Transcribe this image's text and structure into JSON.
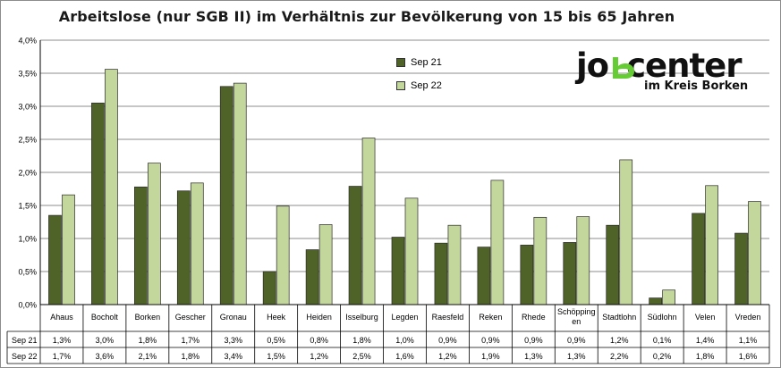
{
  "chart_data": {
    "type": "bar",
    "title": "Arbeitslose (nur SGB II) im Verhältnis zur Bevölkerung von 15 bis 65 Jahren",
    "categories": [
      "Ahaus",
      "Bocholt",
      "Borken",
      "Gescher",
      "Gronau",
      "Heek",
      "Heiden",
      "Isselburg",
      "Legden",
      "Raesfeld",
      "Reken",
      "Rhede",
      "Schöpping\nen",
      "Stadtlohn",
      "Südlohn",
      "Velen",
      "Vreden"
    ],
    "series": [
      {
        "name": "Sep 21",
        "color": "#4f6228",
        "values": [
          1.35,
          3.05,
          1.78,
          1.72,
          3.3,
          0.5,
          0.83,
          1.79,
          1.02,
          0.93,
          0.87,
          0.9,
          0.94,
          1.2,
          0.1,
          1.38,
          1.08
        ],
        "table_values": [
          "1,3%",
          "3,0%",
          "1,8%",
          "1,7%",
          "3,3%",
          "0,5%",
          "0,8%",
          "1,8%",
          "1,0%",
          "0,9%",
          "0,9%",
          "0,9%",
          "0,9%",
          "1,2%",
          "0,1%",
          "1,4%",
          "1,1%"
        ]
      },
      {
        "name": "Sep 22",
        "color": "#c3d69b",
        "values": [
          1.66,
          3.56,
          2.14,
          1.84,
          3.35,
          1.49,
          1.21,
          2.52,
          1.61,
          1.2,
          1.88,
          1.32,
          1.33,
          2.19,
          0.22,
          1.8,
          1.56
        ],
        "table_values": [
          "1,7%",
          "3,6%",
          "2,1%",
          "1,8%",
          "3,4%",
          "1,5%",
          "1,2%",
          "2,5%",
          "1,6%",
          "1,2%",
          "1,9%",
          "1,3%",
          "1,3%",
          "2,2%",
          "0,2%",
          "1,8%",
          "1,6%"
        ]
      }
    ],
    "ylim": [
      0,
      4.0
    ],
    "yticks": [
      0,
      0.5,
      1.0,
      1.5,
      2.0,
      2.5,
      3.0,
      3.5,
      4.0
    ],
    "ytick_labels": [
      "0,0%",
      "0,5%",
      "1,0%",
      "1,5%",
      "2,0%",
      "2,5%",
      "3,0%",
      "3,5%",
      "4,0%"
    ],
    "grid": true,
    "legend": "top-center"
  },
  "logo": {
    "brand_left": "jo",
    "brand_right": "center",
    "subtitle": "im Kreis Borken",
    "accent": "#66cc33"
  }
}
